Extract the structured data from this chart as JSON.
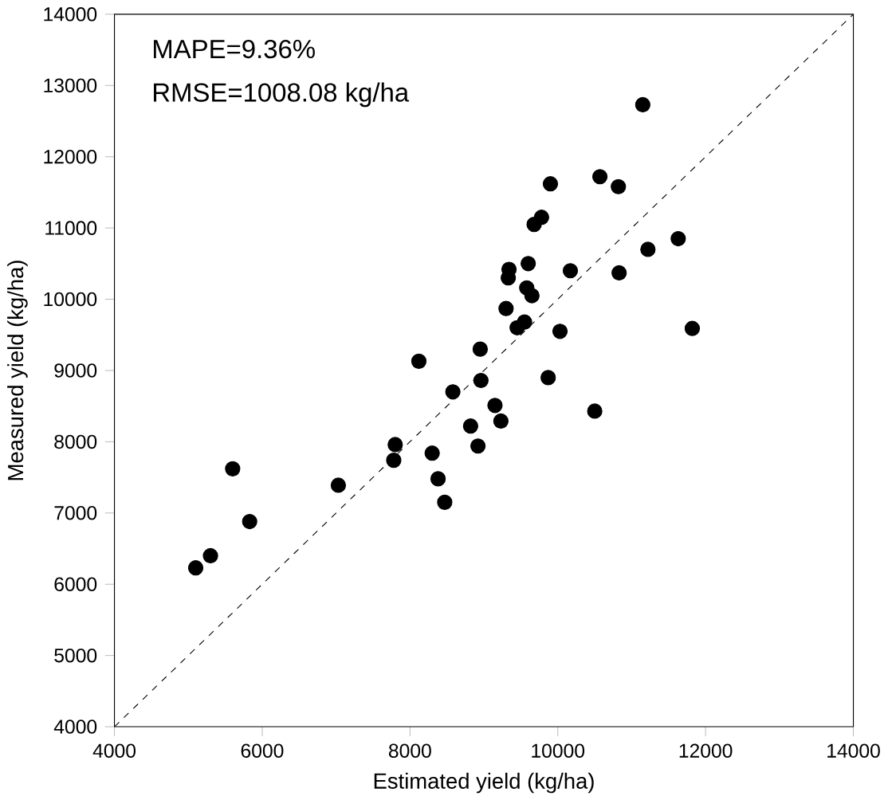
{
  "chart_data": {
    "type": "scatter",
    "xlabel": "Estimated yield (kg/ha)",
    "ylabel": "Measured yield (kg/ha)",
    "annotations": [
      "MAPE=9.36%",
      "RMSE=1008.08 kg/ha"
    ],
    "xlim": [
      4000,
      14000
    ],
    "ylim": [
      4000,
      14000
    ],
    "xticks": [
      4000,
      6000,
      8000,
      10000,
      12000,
      14000
    ],
    "yticks": [
      4000,
      5000,
      6000,
      7000,
      8000,
      9000,
      10000,
      11000,
      12000,
      13000,
      14000
    ],
    "grid": false,
    "series": [
      {
        "type": "scatter",
        "color": "#000000",
        "marker": "circle",
        "x": [
          5100,
          5300,
          5600,
          5830,
          7030,
          7780,
          7800,
          8120,
          8300,
          8380,
          8470,
          8580,
          8820,
          8920,
          8950,
          8960,
          9150,
          9230,
          9300,
          9340,
          9330,
          9450,
          9550,
          9580,
          9600,
          9650,
          9680,
          9780,
          9870,
          9900,
          10030,
          10170,
          10500,
          10570,
          10820,
          10830,
          11150,
          11220,
          11630,
          11820
        ],
        "values": [
          6230,
          6400,
          7620,
          6880,
          7390,
          7740,
          7960,
          9130,
          7840,
          7480,
          7150,
          8700,
          8220,
          7940,
          9300,
          8860,
          8510,
          8290,
          9870,
          10420,
          10300,
          9600,
          9680,
          10160,
          10500,
          10050,
          11050,
          11150,
          8900,
          11620,
          9550,
          10400,
          8430,
          11720,
          11580,
          10370,
          12730,
          10700,
          10850,
          9590
        ]
      },
      {
        "type": "line",
        "color": "#000000",
        "marker": "none",
        "line_style": "dashed",
        "x": [
          4000,
          14000
        ],
        "values": [
          4000,
          14000
        ]
      }
    ]
  }
}
